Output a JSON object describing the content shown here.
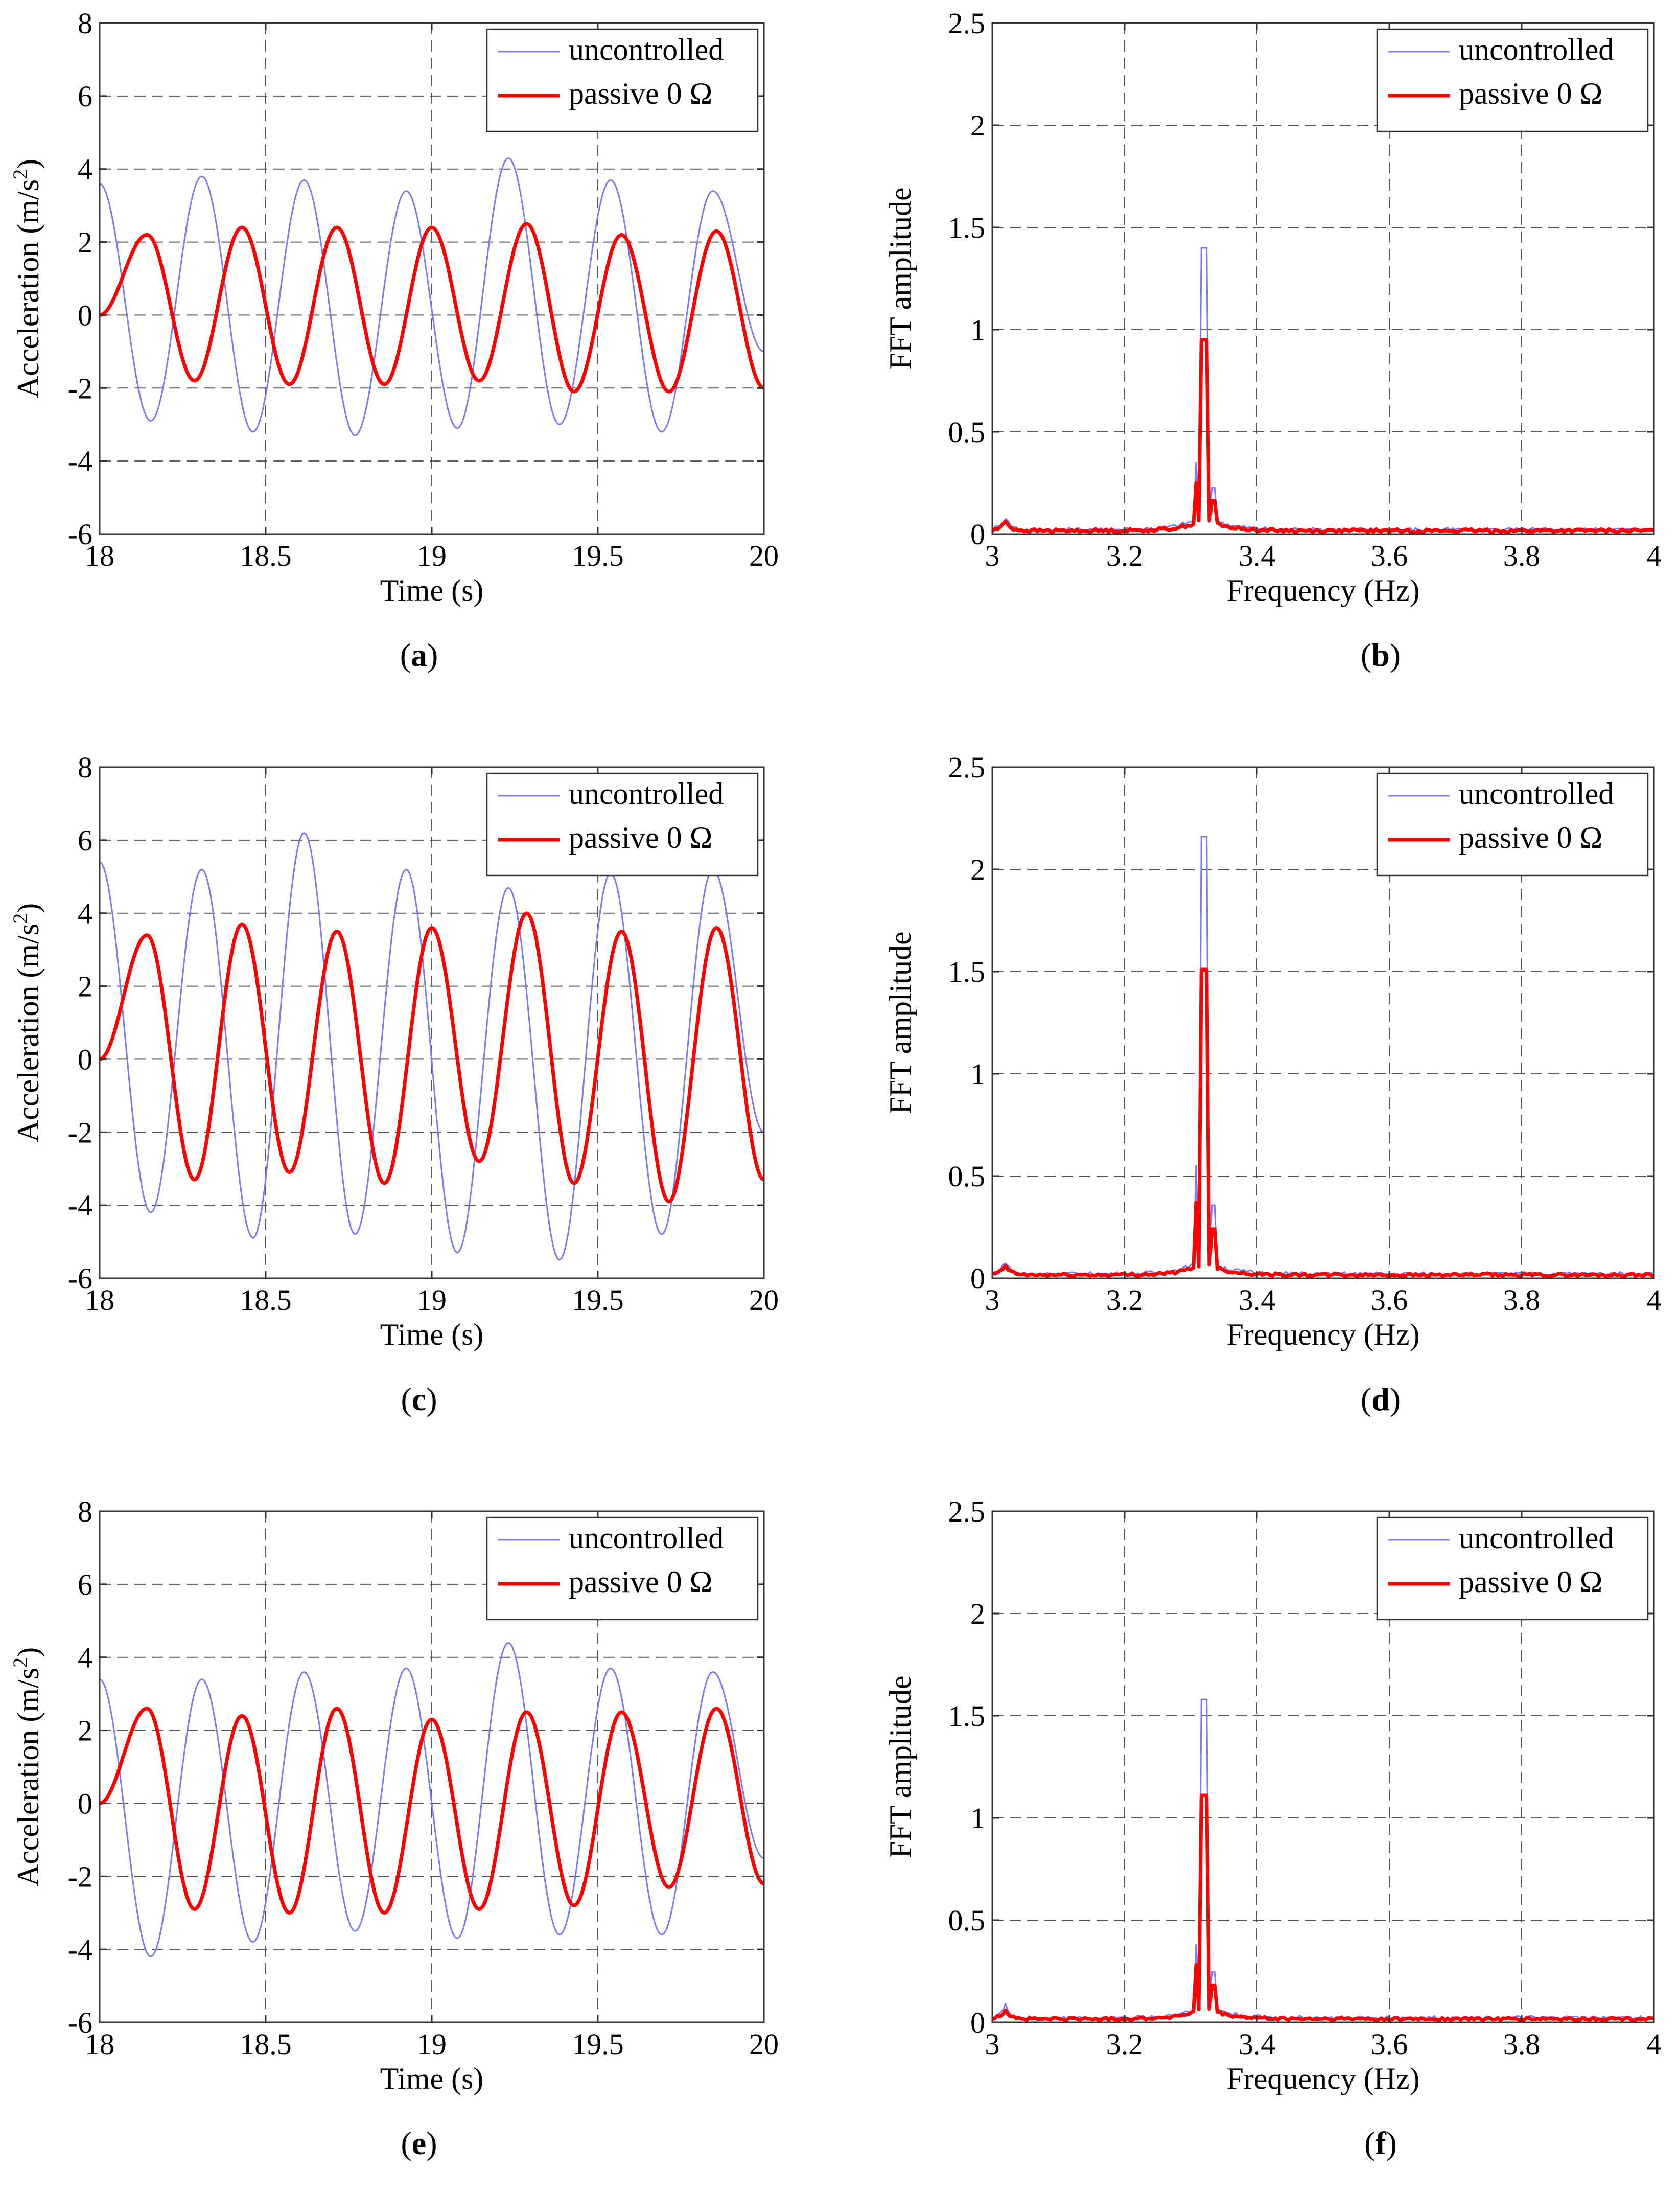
{
  "chart_data": [
    {
      "id": "a",
      "type": "line",
      "caption_letter": "a",
      "xlabel": "Time (s)",
      "ylabel": "Acceleration (m/s2)",
      "xlim": [
        18,
        20
      ],
      "ylim": [
        -6,
        8
      ],
      "xticks": [
        18,
        18.5,
        19,
        19.5,
        20
      ],
      "yticks": [
        -6,
        -4,
        -2,
        0,
        2,
        4,
        6,
        8
      ],
      "xtick_labels": [
        "18",
        "18.5",
        "19",
        "19.5",
        "20"
      ],
      "ytick_labels": [
        "-6",
        "-4",
        "-2",
        "0",
        "2",
        "4",
        "6",
        "8"
      ],
      "legend": [
        "uncontrolled",
        "passive 0 Ω"
      ],
      "legend_position": "top-right",
      "series": [
        {
          "name": "uncontrolled",
          "color": "#7b7bf0",
          "peaks": [
            3.6,
            -2.9,
            3.8,
            -3.2,
            3.7,
            -3.3,
            3.4,
            -3.1,
            4.3,
            -3.0,
            3.7,
            -3.2,
            3.4,
            -1.0
          ],
          "start": 3.6,
          "end": -1.0
        },
        {
          "name": "passive 0 Ω",
          "color": "#ff0000",
          "peaks": [
            0,
            2.2,
            -1.8,
            2.4,
            -1.9,
            2.4,
            -1.9,
            2.4,
            -1.8,
            2.5,
            -2.1,
            2.2,
            -2.1,
            2.3,
            -2.0
          ],
          "start": 0,
          "end": -2.0
        }
      ]
    },
    {
      "id": "b",
      "type": "line",
      "caption_letter": "b",
      "xlabel": "Frequency (Hz)",
      "ylabel": "FFT amplitude",
      "xlim": [
        3,
        4
      ],
      "ylim": [
        0,
        2.5
      ],
      "xticks": [
        3,
        3.2,
        3.4,
        3.6,
        3.8,
        4
      ],
      "yticks": [
        0,
        0.5,
        1,
        1.5,
        2,
        2.5
      ],
      "xtick_labels": [
        "3",
        "3.2",
        "3.4",
        "3.6",
        "3.8",
        "4"
      ],
      "ytick_labels": [
        "0",
        "0.5",
        "1",
        "1.5",
        "2",
        "2.5"
      ],
      "legend": [
        "uncontrolled",
        "passive 0 Ω"
      ],
      "legend_position": "top-right",
      "series": [
        {
          "name": "uncontrolled",
          "color": "#7b7bf0",
          "peak": 1.4,
          "side": 0.35
        },
        {
          "name": "passive 0 Ω",
          "color": "#ff0000",
          "peak": 0.95,
          "side": 0.25
        }
      ]
    },
    {
      "id": "c",
      "type": "line",
      "caption_letter": "c",
      "xlabel": "Time (s)",
      "ylabel": "Acceleration (m/s2)",
      "xlim": [
        18,
        20
      ],
      "ylim": [
        -6,
        8
      ],
      "xticks": [
        18,
        18.5,
        19,
        19.5,
        20
      ],
      "yticks": [
        -6,
        -4,
        -2,
        0,
        2,
        4,
        6,
        8
      ],
      "xtick_labels": [
        "18",
        "18.5",
        "19",
        "19.5",
        "20"
      ],
      "ytick_labels": [
        "-6",
        "-4",
        "-2",
        "0",
        "2",
        "4",
        "6",
        "8"
      ],
      "legend": [
        "uncontrolled",
        "passive 0 Ω"
      ],
      "legend_position": "top-right",
      "series": [
        {
          "name": "uncontrolled",
          "color": "#7b7bf0",
          "peaks": [
            5.4,
            -4.2,
            5.2,
            -4.9,
            6.2,
            -4.8,
            5.2,
            -5.3,
            4.7,
            -5.5,
            5.1,
            -4.8,
            5.2,
            -2.0
          ],
          "start": 5.4,
          "end": -2.0
        },
        {
          "name": "passive 0 Ω",
          "color": "#ff0000",
          "peaks": [
            0,
            3.4,
            -3.3,
            3.7,
            -3.1,
            3.5,
            -3.4,
            3.6,
            -2.8,
            4.0,
            -3.4,
            3.5,
            -3.9,
            3.6,
            -3.3
          ],
          "start": 0,
          "end": -3.3
        }
      ]
    },
    {
      "id": "d",
      "type": "line",
      "caption_letter": "d",
      "xlabel": "Frequency (Hz)",
      "ylabel": "FFT amplitude",
      "xlim": [
        3,
        4
      ],
      "ylim": [
        0,
        2.5
      ],
      "xticks": [
        3,
        3.2,
        3.4,
        3.6,
        3.8,
        4
      ],
      "yticks": [
        0,
        0.5,
        1,
        1.5,
        2,
        2.5
      ],
      "xtick_labels": [
        "3",
        "3.2",
        "3.4",
        "3.6",
        "3.8",
        "4"
      ],
      "ytick_labels": [
        "0",
        "0.5",
        "1",
        "1.5",
        "2",
        "2.5"
      ],
      "legend": [
        "uncontrolled",
        "passive 0 Ω"
      ],
      "legend_position": "top-right",
      "series": [
        {
          "name": "uncontrolled",
          "color": "#7b7bf0",
          "peak": 2.16,
          "side": 0.55
        },
        {
          "name": "passive 0 Ω",
          "color": "#ff0000",
          "peak": 1.51,
          "side": 0.37
        }
      ]
    },
    {
      "id": "e",
      "type": "line",
      "caption_letter": "e",
      "xlabel": "Time (s)",
      "ylabel": "Acceleration (m/s2)",
      "xlim": [
        18,
        20
      ],
      "ylim": [
        -6,
        8
      ],
      "xticks": [
        18,
        18.5,
        19,
        19.5,
        20
      ],
      "yticks": [
        -6,
        -4,
        -2,
        0,
        2,
        4,
        6,
        8
      ],
      "xtick_labels": [
        "18",
        "18.5",
        "19",
        "19.5",
        "20"
      ],
      "ytick_labels": [
        "-6",
        "-4",
        "-2",
        "0",
        "2",
        "4",
        "6",
        "8"
      ],
      "legend": [
        "uncontrolled",
        "passive 0 Ω"
      ],
      "legend_position": "top-right",
      "series": [
        {
          "name": "uncontrolled",
          "color": "#7b7bf0",
          "peaks": [
            3.4,
            -4.2,
            3.4,
            -3.8,
            3.6,
            -3.5,
            3.7,
            -3.7,
            4.4,
            -3.6,
            3.7,
            -3.6,
            3.6,
            -1.5
          ],
          "start": 3.4,
          "end": -1.5
        },
        {
          "name": "passive 0 Ω",
          "color": "#ff0000",
          "peaks": [
            0,
            2.6,
            -2.9,
            2.4,
            -3.0,
            2.6,
            -3.0,
            2.3,
            -2.9,
            2.5,
            -2.8,
            2.5,
            -2.3,
            2.6,
            -2.2
          ],
          "start": 0,
          "end": -2.2
        }
      ]
    },
    {
      "id": "f",
      "type": "line",
      "caption_letter": "f",
      "xlabel": "Frequency (Hz)",
      "ylabel": "FFT amplitude",
      "xlim": [
        3,
        4
      ],
      "ylim": [
        0,
        2.5
      ],
      "xticks": [
        3,
        3.2,
        3.4,
        3.6,
        3.8,
        4
      ],
      "yticks": [
        0,
        0.5,
        1,
        1.5,
        2,
        2.5
      ],
      "xtick_labels": [
        "3",
        "3.2",
        "3.4",
        "3.6",
        "3.8",
        "4"
      ],
      "ytick_labels": [
        "0",
        "0.5",
        "1",
        "1.5",
        "2",
        "2.5"
      ],
      "legend": [
        "uncontrolled",
        "passive 0 Ω"
      ],
      "legend_position": "top-right",
      "series": [
        {
          "name": "uncontrolled",
          "color": "#7b7bf0",
          "peak": 1.58,
          "side": 0.38
        },
        {
          "name": "passive 0 Ω",
          "color": "#ff0000",
          "peak": 1.11,
          "side": 0.28
        }
      ]
    }
  ]
}
